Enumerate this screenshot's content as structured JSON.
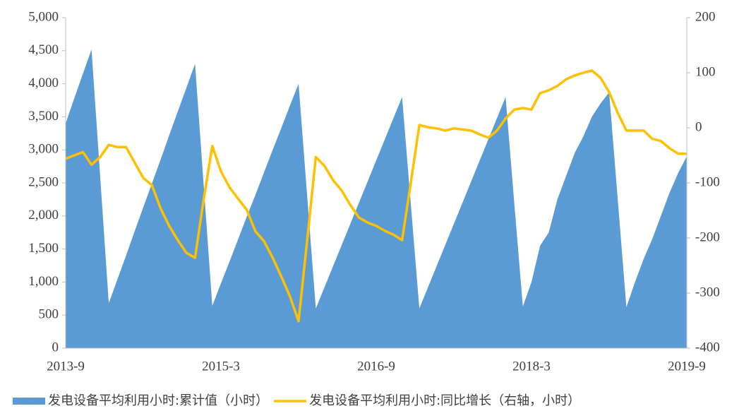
{
  "chart_data": {
    "type": "area-line",
    "categories": [
      "2013-9",
      null,
      null,
      null,
      null,
      null,
      null,
      null,
      null,
      null,
      null,
      null,
      null,
      null,
      null,
      null,
      null,
      null,
      "2015-3",
      null,
      null,
      null,
      null,
      null,
      null,
      null,
      null,
      null,
      null,
      null,
      null,
      null,
      null,
      null,
      null,
      null,
      "2016-9",
      null,
      null,
      null,
      null,
      null,
      null,
      null,
      null,
      null,
      null,
      null,
      null,
      null,
      null,
      null,
      null,
      null,
      "2018-3",
      null,
      null,
      null,
      null,
      null,
      null,
      null,
      null,
      null,
      null,
      null,
      null,
      null,
      null,
      null,
      null,
      null,
      "2019-9"
    ],
    "series": [
      {
        "name": "发电设备平均利用小时:累计值（小时）",
        "type": "area",
        "color": "#5b9bd5",
        "axis": "y",
        "values": [
          3400,
          3780,
          4150,
          4520,
          2600,
          680,
          1040,
          1400,
          1770,
          2130,
          2490,
          2850,
          3220,
          3580,
          3940,
          4300,
          2470,
          640,
          980,
          1310,
          1650,
          1990,
          2320,
          2660,
          3000,
          3330,
          3670,
          4000,
          2300,
          600,
          920,
          1240,
          1560,
          1880,
          2200,
          2520,
          2840,
          3160,
          3480,
          3800,
          2200,
          600,
          920,
          1240,
          1560,
          1880,
          2200,
          2520,
          2840,
          3160,
          3480,
          3800,
          2200,
          630,
          1000,
          1550,
          1750,
          2250,
          2600,
          2950,
          3200,
          3500,
          3700,
          3870,
          2250,
          620,
          1000,
          1350,
          1650,
          2000,
          2350,
          2650,
          2900
        ]
      },
      {
        "name": "发电设备平均利用小时:同比增长（右轴，小时）",
        "type": "line",
        "color": "#ffc000",
        "axis": "y2",
        "values": [
          -56,
          -50,
          -44,
          -67,
          -53,
          -31,
          -35,
          -35,
          -63,
          -91,
          -104,
          -146,
          -178,
          -204,
          -227,
          -236,
          -130,
          -33,
          -79,
          -108,
          -129,
          -149,
          -188,
          -206,
          -236,
          -270,
          -306,
          -351,
          -204,
          -53,
          -69,
          -95,
          -114,
          -140,
          -163,
          -172,
          -178,
          -187,
          -194,
          -204,
          -101,
          5,
          1,
          -1,
          -5,
          -1,
          -3,
          -5,
          -12,
          -18,
          -5,
          17,
          33,
          36,
          33,
          63,
          68,
          76,
          88,
          95,
          100,
          104,
          91,
          65,
          27,
          -5,
          -5,
          -5,
          -20,
          -24,
          -37,
          -47,
          -47
        ]
      }
    ],
    "ylim": [
      0,
      5000
    ],
    "yticks": [
      0,
      500,
      {
        "value": 1000,
        "label": "1,000"
      },
      {
        "value": 1500,
        "label": "1,500"
      },
      {
        "value": 2000,
        "label": "2,000"
      },
      {
        "value": 2500,
        "label": "2,500"
      },
      {
        "value": 3000,
        "label": "3,000"
      },
      {
        "value": 3500,
        "label": "3,500"
      },
      {
        "value": 4000,
        "label": "4,000"
      },
      {
        "value": 4500,
        "label": "4,500"
      },
      {
        "value": 5000,
        "label": "5,000"
      }
    ],
    "y2lim": [
      -400,
      200
    ],
    "y2ticks": [
      -400,
      -300,
      -200,
      -100,
      0,
      100,
      200
    ],
    "legend": "bottom",
    "grid": false
  }
}
